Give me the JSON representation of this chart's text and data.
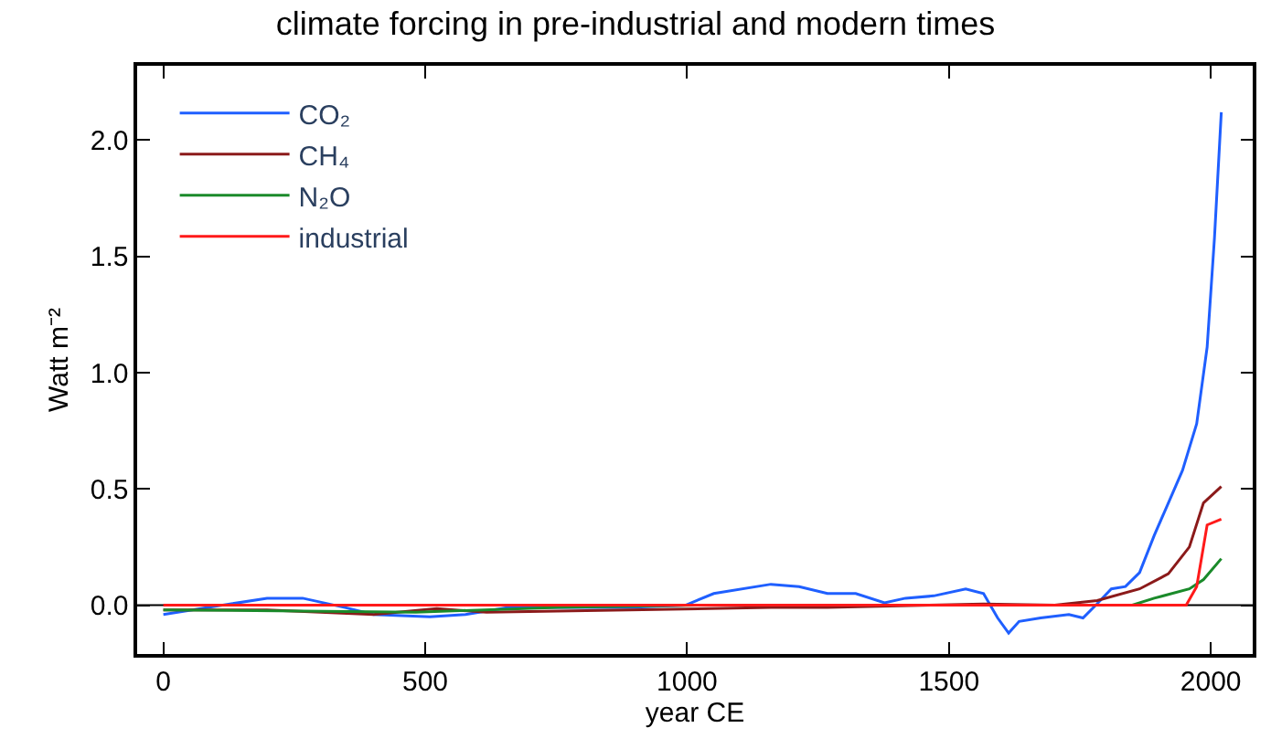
{
  "chart_data": {
    "type": "line",
    "title": "climate forcing in pre-industrial and modern times",
    "xlabel": "year CE",
    "ylabel": "Watt m⁻²",
    "xlim": [
      -50,
      2080
    ],
    "xticks": [
      0,
      500,
      1000,
      1500,
      2000
    ],
    "ylim": [
      -0.21,
      2.32
    ],
    "yticks": [
      {
        "value": 0,
        "label": "0.0"
      },
      {
        "value": 0.5,
        "label": "0.5"
      },
      {
        "value": 1,
        "label": "1.0"
      },
      {
        "value": 1.5,
        "label": "1.5"
      },
      {
        "value": 2,
        "label": "2.0"
      }
    ],
    "grid": false,
    "legend": "top left",
    "marker": "none",
    "line_style": "solid",
    "ref_lines": [
      {
        "axis": "y",
        "value": 0,
        "label": null,
        "color": "#000000"
      }
    ],
    "series": [
      {
        "name": "CO₂",
        "color": "#1f5fff",
        "x": [
          0,
          198,
          266,
          347,
          401,
          509,
          577,
          659,
          753,
          889,
          997,
          1051,
          1160,
          1214,
          1268,
          1322,
          1377,
          1417,
          1471,
          1532,
          1566,
          1593,
          1614,
          1634,
          1675,
          1729,
          1756,
          1783,
          1810,
          1837,
          1864,
          1892,
          1919,
          1946,
          1973,
          1993,
          2007,
          2020
        ],
        "values": [
          -0.04,
          0.03,
          0.03,
          -0.01,
          -0.04,
          -0.05,
          -0.04,
          -0.01,
          -0.01,
          -0.01,
          0,
          0.05,
          0.09,
          0.08,
          0.05,
          0.05,
          0.01,
          0.03,
          0.04,
          0.07,
          0.05,
          -0.055,
          -0.12,
          -0.07,
          -0.055,
          -0.04,
          -0.055,
          0.006,
          0.07,
          0.08,
          0.14,
          0.3,
          0.44,
          0.58,
          0.78,
          1.11,
          1.58,
          2.12
        ]
      },
      {
        "name": "CH₄",
        "color": "#8b1a1a",
        "x": [
          0,
          198,
          401,
          522,
          617,
          889,
          1160,
          1268,
          1566,
          1702,
          1783,
          1864,
          1919,
          1959,
          1986,
          2020
        ],
        "values": [
          -0.02,
          -0.02,
          -0.04,
          -0.015,
          -0.03,
          -0.02,
          -0.01,
          -0.01,
          0.005,
          0,
          0.02,
          0.07,
          0.135,
          0.25,
          0.44,
          0.51
        ]
      },
      {
        "name": "N₂O",
        "color": "#1a8a2a",
        "x": [
          0,
          482,
          753,
          1024,
          1566,
          1850,
          1892,
          1959,
          1986,
          2020
        ],
        "values": [
          -0.02,
          -0.03,
          -0.01,
          0,
          0,
          0,
          0.03,
          0.07,
          0.11,
          0.2
        ]
      },
      {
        "name": "industrial",
        "color": "#ff1a1a",
        "x": [
          0,
          1953,
          1973,
          1993,
          2020
        ],
        "values": [
          0,
          0,
          0.08,
          0.345,
          0.37
        ]
      }
    ]
  }
}
